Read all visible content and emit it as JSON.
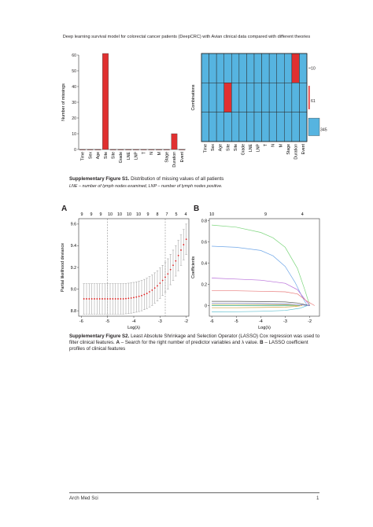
{
  "header": {
    "running_title": "Deep learning survival model for colorectal cancer patients (DeepCRC) with Avian clinical data compared with different theories"
  },
  "fig1": {
    "bar": {
      "type": "bar",
      "categories": [
        "Time",
        "Sex",
        "Age",
        "Site",
        "Site",
        "Grade",
        "LNE",
        "LNP",
        "T",
        "N",
        "M",
        "Stage",
        "Duration",
        "Event"
      ],
      "values": [
        0,
        0,
        0,
        61,
        0,
        0,
        0,
        0,
        0,
        0,
        0,
        0,
        10,
        0
      ],
      "ylabel": "Number of missings",
      "ylim": [
        0,
        60
      ],
      "yticks": [
        0,
        10,
        20,
        30,
        40,
        50,
        60
      ],
      "color": "#e03030"
    },
    "combinations": {
      "ylabel": "Combinations",
      "columns": [
        "Time",
        "Sex",
        "Age",
        "Site",
        "Site",
        "Grade",
        "LNE",
        "LNP",
        "T",
        "N",
        "M",
        "Stage",
        "Duration",
        "Event"
      ],
      "rows": [
        {
          "missing_cols": [
            12
          ],
          "count": "10"
        },
        {
          "missing_cols": [
            3
          ],
          "count": "61"
        },
        {
          "missing_cols": [],
          "count": "345"
        }
      ],
      "present_color": "#56b4e0",
      "missing_color": "#e03030"
    },
    "caption_label": "Supplementary Figure S1.",
    "caption_text": " Distribution of missing values of all patients",
    "note": "LNE – number of lymph nodes examined, LNP – number of lymph nodes positive."
  },
  "fig2": {
    "panel_a": {
      "label": "A",
      "top_ticks": [
        "9",
        "9",
        "9",
        "10",
        "10",
        "10",
        "10",
        "9",
        "8",
        "7",
        "5",
        "4"
      ],
      "xlabel": "Log(λ)",
      "ylabel": "Partial likelihood deviance",
      "x_ticks": [
        "-6",
        "-5",
        "-4",
        "-3",
        "-2"
      ],
      "y_ticks": [
        "8.8",
        "9.0",
        "9.2",
        "9.4",
        "9.6"
      ],
      "chart_data": {
        "type": "scatter",
        "xlim": [
          -6.1,
          -1.9
        ],
        "ylim": [
          8.75,
          9.65
        ],
        "x": [
          -5.9,
          -5.8,
          -5.7,
          -5.6,
          -5.5,
          -5.4,
          -5.3,
          -5.2,
          -5.1,
          -5.0,
          -4.9,
          -4.8,
          -4.7,
          -4.6,
          -4.5,
          -4.4,
          -4.3,
          -4.2,
          -4.1,
          -4.0,
          -3.9,
          -3.8,
          -3.7,
          -3.6,
          -3.5,
          -3.4,
          -3.3,
          -3.2,
          -3.1,
          -3.0,
          -2.9,
          -2.8,
          -2.7,
          -2.6,
          -2.5,
          -2.4,
          -2.3,
          -2.2,
          -2.1,
          -2.0
        ],
        "y": [
          8.91,
          8.91,
          8.91,
          8.91,
          8.91,
          8.91,
          8.91,
          8.91,
          8.91,
          8.91,
          8.91,
          8.91,
          8.91,
          8.91,
          8.91,
          8.91,
          8.912,
          8.915,
          8.918,
          8.922,
          8.927,
          8.933,
          8.94,
          8.95,
          8.96,
          8.975,
          8.99,
          9.01,
          9.03,
          9.055,
          9.08,
          9.11,
          9.14,
          9.18,
          9.22,
          9.26,
          9.31,
          9.36,
          9.41,
          9.46
        ],
        "err": [
          0.14,
          0.14,
          0.14,
          0.14,
          0.14,
          0.14,
          0.14,
          0.14,
          0.14,
          0.14,
          0.14,
          0.14,
          0.14,
          0.14,
          0.14,
          0.14,
          0.14,
          0.14,
          0.14,
          0.14,
          0.14,
          0.14,
          0.14,
          0.14,
          0.14,
          0.14,
          0.14,
          0.14,
          0.14,
          0.14,
          0.14,
          0.14,
          0.14,
          0.14,
          0.14,
          0.14,
          0.14,
          0.14,
          0.14,
          0.14
        ],
        "vlines": [
          -5.0,
          -2.8
        ]
      }
    },
    "panel_b": {
      "label": "B",
      "top_ticks": [
        "10",
        "9",
        "4"
      ],
      "xlabel": "Log(λ)",
      "ylabel": "Coefficients",
      "x_ticks": [
        "-6",
        "-5",
        "-4",
        "-3",
        "-2"
      ],
      "y_ticks": [
        "0",
        "0.2",
        "0.4",
        "0.6",
        "0.8"
      ],
      "chart_data": {
        "type": "line",
        "xlim": [
          -6.1,
          -1.6
        ],
        "ylim": [
          -0.1,
          0.82
        ],
        "series": [
          {
            "color": "#7dd67d",
            "x": [
              -6,
              -5,
              -4,
              -3.5,
              -3,
              -2.5,
              -2.2,
              -2.0
            ],
            "y": [
              0.76,
              0.74,
              0.69,
              0.64,
              0.55,
              0.35,
              0.15,
              0.0
            ]
          },
          {
            "color": "#70a7e8",
            "x": [
              -6,
              -5,
              -4,
              -3.5,
              -3,
              -2.6,
              -2.3,
              -2.1
            ],
            "y": [
              0.56,
              0.55,
              0.52,
              0.47,
              0.37,
              0.22,
              0.08,
              0.0
            ]
          },
          {
            "color": "#b66bd9",
            "x": [
              -6,
              -5,
              -4,
              -3,
              -2.5,
              -2.2,
              -2.0
            ],
            "y": [
              0.26,
              0.25,
              0.24,
              0.21,
              0.15,
              0.06,
              0.0
            ]
          },
          {
            "color": "#e87a7a",
            "x": [
              -6,
              -5,
              -4,
              -3,
              -2.5,
              -2.1,
              -1.8
            ],
            "y": [
              0.14,
              0.14,
              0.135,
              0.13,
              0.11,
              0.04,
              0.0
            ]
          },
          {
            "color": "#555555",
            "x": [
              -6,
              -5,
              -4,
              -3,
              -2.5,
              -2.2,
              -2.0
            ],
            "y": [
              0.04,
              0.04,
              0.038,
              0.034,
              0.025,
              0.01,
              0.0
            ]
          },
          {
            "color": "#7070c0",
            "x": [
              -6,
              -5,
              -4,
              -3,
              -2.5,
              -2.2,
              -2.0
            ],
            "y": [
              0.02,
              0.02,
              0.019,
              0.016,
              0.01,
              0.004,
              0.0
            ]
          },
          {
            "color": "#40b0a0",
            "x": [
              -6,
              -5,
              -4,
              -3,
              -2.6,
              -2.4
            ],
            "y": [
              0.0,
              0.0,
              0.0,
              0.0,
              0.0,
              0.0
            ]
          },
          {
            "color": "#d0a040",
            "x": [
              -6,
              -5,
              -4,
              -3,
              -2.6,
              -2.3
            ],
            "y": [
              -0.02,
              -0.02,
              -0.018,
              -0.014,
              -0.008,
              0.0
            ]
          },
          {
            "color": "#60c0d0",
            "x": [
              -6,
              -5,
              -4,
              -3,
              -2.4,
              -2.1
            ],
            "y": [
              -0.06,
              -0.058,
              -0.054,
              -0.046,
              -0.025,
              0.0
            ]
          },
          {
            "color": "#c0c040",
            "x": [
              -6,
              -5,
              -4,
              -3,
              -2.7,
              -2.5
            ],
            "y": [
              0.01,
              0.01,
              0.01,
              0.008,
              0.004,
              0.0
            ]
          }
        ]
      }
    },
    "caption_label": "Supplementary Figure S2.",
    "caption_text_1": " Least Absolute Shrinkage and Selection Operator (LASSO) Cox regression was used to filter clinical features. ",
    "caption_a": "A",
    "caption_text_2": " – Search for the right number of predictor variables and λ value. ",
    "caption_b": "B",
    "caption_text_3": " – LASSO coefficient profiles of clinical features"
  },
  "footer": {
    "journal": "Arch Med Sci",
    "page": "1"
  }
}
